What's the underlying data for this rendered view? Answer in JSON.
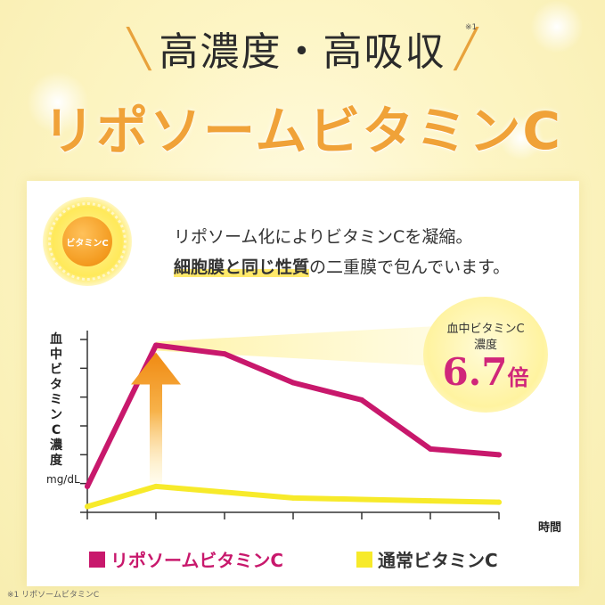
{
  "header": {
    "headline": "高濃度・高吸収",
    "headline_note": "※1",
    "product_name": "リポソームビタミンC"
  },
  "card": {
    "sun_label": "ビタミンC",
    "description_line1": "リポソーム化によりビタミンCを凝縮。",
    "description_line2_highlight": "細胞膜と同じ性質",
    "description_line2_rest": "の二重膜で包んでいます。"
  },
  "badge": {
    "line1": "血中ビタミンC",
    "line2": "濃度",
    "value": "6.7",
    "unit": "倍"
  },
  "chart_data": {
    "type": "line",
    "title": "",
    "xlabel": "時間",
    "ylabel": "血中ビタミンC濃度",
    "yunit": "mg/dL",
    "x": [
      0,
      1,
      2,
      3,
      4,
      5,
      6
    ],
    "ylim": [
      0,
      6
    ],
    "grid": false,
    "legend_position": "bottom",
    "series": [
      {
        "name": "リポソームビタミンC",
        "color": "#c8186c",
        "values": [
          0.9,
          5.8,
          5.5,
          4.5,
          3.9,
          2.2,
          2.0
        ]
      },
      {
        "name": "通常ビタミンC",
        "color": "#f7ea2a",
        "values": [
          0.2,
          0.9,
          0.7,
          0.5,
          0.45,
          0.4,
          0.35
        ]
      }
    ]
  },
  "footnote": "※1 リポソームビタミンC"
}
